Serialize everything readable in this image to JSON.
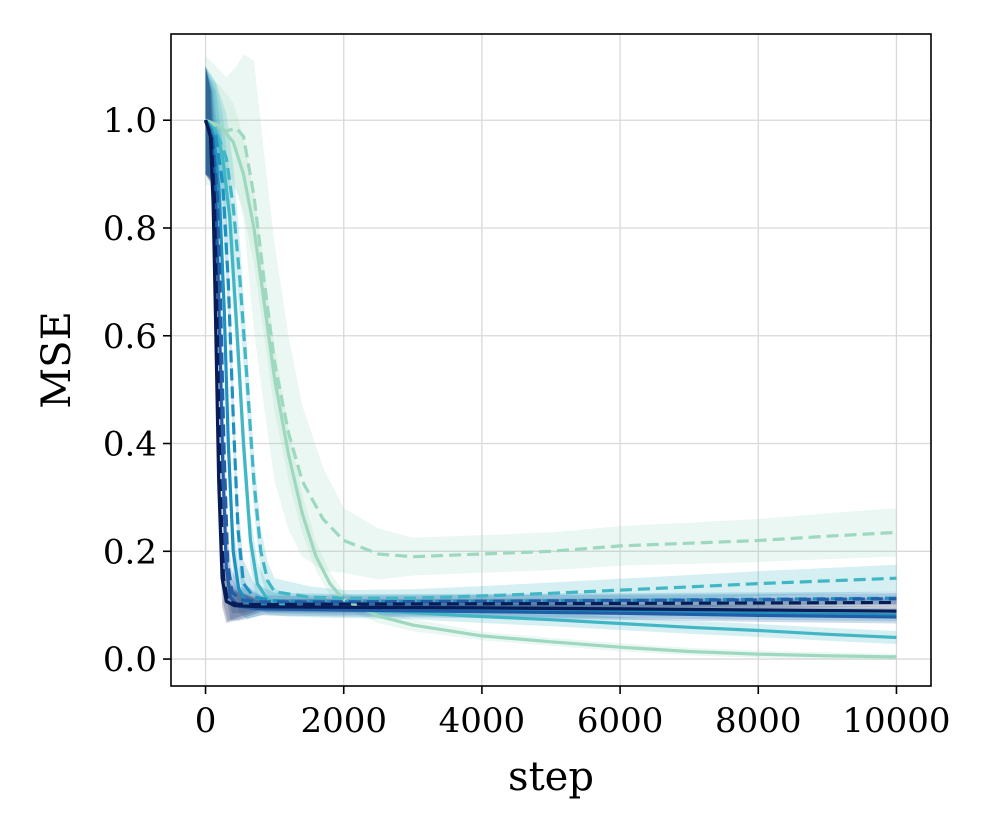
{
  "chart_data": {
    "type": "line",
    "xlabel": "step",
    "ylabel": "MSE",
    "xlim": [
      -500,
      10500
    ],
    "ylim": [
      -0.05,
      1.16
    ],
    "xticks": [
      0,
      2000,
      4000,
      6000,
      8000,
      10000
    ],
    "xtick_labels": [
      "0",
      "2000",
      "4000",
      "6000",
      "8000",
      "10000"
    ],
    "yticks": [
      0.0,
      0.2,
      0.4,
      0.6,
      0.8,
      1.0
    ],
    "ytick_labels": [
      "0.0",
      "0.2",
      "0.4",
      "0.6",
      "0.8",
      "1.0"
    ],
    "grid": true,
    "legend": "none",
    "series": [
      {
        "color": "#9dd8bf",
        "dash": true,
        "band_alpha": 0.2,
        "points": [
          [
            0,
            1.0
          ],
          [
            150,
            0.99
          ],
          [
            300,
            0.98
          ],
          [
            450,
            0.985
          ],
          [
            550,
            0.97
          ],
          [
            700,
            0.86
          ],
          [
            850,
            0.7
          ],
          [
            1000,
            0.55
          ],
          [
            1200,
            0.42
          ],
          [
            1400,
            0.33
          ],
          [
            1700,
            0.26
          ],
          [
            2000,
            0.22
          ],
          [
            2500,
            0.195
          ],
          [
            3000,
            0.19
          ],
          [
            4000,
            0.195
          ],
          [
            5000,
            0.2
          ],
          [
            6000,
            0.21
          ],
          [
            7000,
            0.215
          ],
          [
            8000,
            0.22
          ],
          [
            9000,
            0.228
          ],
          [
            10000,
            0.235
          ]
        ],
        "band": [
          [
            0,
            0.12
          ],
          [
            300,
            0.1
          ],
          [
            500,
            0.12
          ],
          [
            700,
            0.25
          ],
          [
            1000,
            0.22
          ],
          [
            1500,
            0.12
          ],
          [
            2000,
            0.06
          ],
          [
            3000,
            0.035
          ],
          [
            5000,
            0.035
          ],
          [
            8000,
            0.04
          ],
          [
            10000,
            0.045
          ]
        ]
      },
      {
        "color": "#9dd8bf",
        "dash": false,
        "band_alpha": 0.2,
        "points": [
          [
            0,
            1.0
          ],
          [
            200,
            0.99
          ],
          [
            400,
            0.96
          ],
          [
            550,
            0.9
          ],
          [
            700,
            0.8
          ],
          [
            850,
            0.66
          ],
          [
            1000,
            0.52
          ],
          [
            1200,
            0.38
          ],
          [
            1400,
            0.27
          ],
          [
            1600,
            0.19
          ],
          [
            1800,
            0.14
          ],
          [
            2000,
            0.11
          ],
          [
            2500,
            0.08
          ],
          [
            3000,
            0.063
          ],
          [
            4000,
            0.043
          ],
          [
            5000,
            0.032
          ],
          [
            6000,
            0.022
          ],
          [
            7000,
            0.014
          ],
          [
            8000,
            0.009
          ],
          [
            9000,
            0.006
          ],
          [
            10000,
            0.004
          ]
        ],
        "band": [
          [
            0,
            0.08
          ],
          [
            500,
            0.07
          ],
          [
            1000,
            0.06
          ],
          [
            1500,
            0.03
          ],
          [
            2000,
            0.015
          ],
          [
            4000,
            0.008
          ],
          [
            10000,
            0.006
          ]
        ]
      },
      {
        "color": "#41b6c4",
        "dash": true,
        "band_alpha": 0.22,
        "points": [
          [
            0,
            1.0
          ],
          [
            150,
            0.98
          ],
          [
            300,
            0.93
          ],
          [
            400,
            0.84
          ],
          [
            500,
            0.7
          ],
          [
            600,
            0.52
          ],
          [
            700,
            0.33
          ],
          [
            800,
            0.2
          ],
          [
            900,
            0.145
          ],
          [
            1000,
            0.125
          ],
          [
            1500,
            0.115
          ],
          [
            2000,
            0.113
          ],
          [
            3000,
            0.113
          ],
          [
            4000,
            0.117
          ],
          [
            5000,
            0.122
          ],
          [
            6000,
            0.128
          ],
          [
            7000,
            0.134
          ],
          [
            8000,
            0.14
          ],
          [
            9000,
            0.145
          ],
          [
            10000,
            0.15
          ]
        ],
        "band": [
          [
            0,
            0.1
          ],
          [
            500,
            0.07
          ],
          [
            1000,
            0.025
          ],
          [
            2000,
            0.015
          ],
          [
            5000,
            0.02
          ],
          [
            10000,
            0.025
          ]
        ]
      },
      {
        "color": "#41b6c4",
        "dash": false,
        "band_alpha": 0.22,
        "points": [
          [
            0,
            1.0
          ],
          [
            150,
            0.98
          ],
          [
            250,
            0.93
          ],
          [
            350,
            0.82
          ],
          [
            450,
            0.62
          ],
          [
            550,
            0.4
          ],
          [
            650,
            0.22
          ],
          [
            750,
            0.14
          ],
          [
            900,
            0.11
          ],
          [
            1200,
            0.098
          ],
          [
            2000,
            0.092
          ],
          [
            3000,
            0.086
          ],
          [
            4000,
            0.079
          ],
          [
            5000,
            0.073
          ],
          [
            6000,
            0.066
          ],
          [
            7000,
            0.059
          ],
          [
            8000,
            0.053
          ],
          [
            9000,
            0.046
          ],
          [
            10000,
            0.04
          ]
        ],
        "band": [
          [
            0,
            0.1
          ],
          [
            500,
            0.06
          ],
          [
            1000,
            0.02
          ],
          [
            3000,
            0.012
          ],
          [
            10000,
            0.012
          ]
        ]
      },
      {
        "color": "#1d91c0",
        "dash": true,
        "band_alpha": 0.22,
        "points": [
          [
            0,
            1.0
          ],
          [
            150,
            0.97
          ],
          [
            250,
            0.88
          ],
          [
            330,
            0.7
          ],
          [
            400,
            0.45
          ],
          [
            470,
            0.24
          ],
          [
            550,
            0.14
          ],
          [
            700,
            0.115
          ],
          [
            1000,
            0.108
          ],
          [
            2000,
            0.106
          ],
          [
            4000,
            0.107
          ],
          [
            6000,
            0.109
          ],
          [
            8000,
            0.111
          ],
          [
            10000,
            0.113
          ]
        ],
        "band": [
          [
            0,
            0.1
          ],
          [
            400,
            0.06
          ],
          [
            800,
            0.015
          ],
          [
            10000,
            0.012
          ]
        ]
      },
      {
        "color": "#1d91c0",
        "dash": false,
        "band_alpha": 0.22,
        "points": [
          [
            0,
            1.0
          ],
          [
            120,
            0.97
          ],
          [
            200,
            0.86
          ],
          [
            270,
            0.65
          ],
          [
            330,
            0.4
          ],
          [
            400,
            0.2
          ],
          [
            480,
            0.13
          ],
          [
            600,
            0.105
          ],
          [
            900,
            0.097
          ],
          [
            2000,
            0.094
          ],
          [
            4000,
            0.091
          ],
          [
            6000,
            0.088
          ],
          [
            8000,
            0.085
          ],
          [
            10000,
            0.082
          ]
        ],
        "band": [
          [
            0,
            0.1
          ],
          [
            400,
            0.05
          ],
          [
            800,
            0.012
          ],
          [
            10000,
            0.012
          ]
        ]
      },
      {
        "color": "#225ea8",
        "dash": true,
        "band_alpha": 0.22,
        "points": [
          [
            0,
            1.0
          ],
          [
            100,
            0.97
          ],
          [
            170,
            0.86
          ],
          [
            220,
            0.65
          ],
          [
            270,
            0.38
          ],
          [
            320,
            0.18
          ],
          [
            380,
            0.125
          ],
          [
            500,
            0.11
          ],
          [
            800,
            0.106
          ],
          [
            2000,
            0.106
          ],
          [
            5000,
            0.108
          ],
          [
            8000,
            0.11
          ],
          [
            10000,
            0.112
          ]
        ],
        "band": [
          [
            0,
            0.1
          ],
          [
            300,
            0.05
          ],
          [
            600,
            0.012
          ],
          [
            10000,
            0.01
          ]
        ]
      },
      {
        "color": "#225ea8",
        "dash": false,
        "band_alpha": 0.22,
        "points": [
          [
            0,
            1.0
          ],
          [
            90,
            0.97
          ],
          [
            150,
            0.86
          ],
          [
            200,
            0.62
          ],
          [
            250,
            0.36
          ],
          [
            300,
            0.17
          ],
          [
            360,
            0.115
          ],
          [
            480,
            0.098
          ],
          [
            800,
            0.093
          ],
          [
            2000,
            0.091
          ],
          [
            4000,
            0.088
          ],
          [
            6000,
            0.085
          ],
          [
            8000,
            0.081
          ],
          [
            10000,
            0.078
          ]
        ],
        "band": [
          [
            0,
            0.1
          ],
          [
            300,
            0.05
          ],
          [
            600,
            0.012
          ],
          [
            10000,
            0.012
          ]
        ]
      },
      {
        "color": "#081d58",
        "dash": true,
        "band_alpha": 0.22,
        "points": [
          [
            0,
            1.0
          ],
          [
            80,
            0.97
          ],
          [
            130,
            0.85
          ],
          [
            170,
            0.6
          ],
          [
            210,
            0.33
          ],
          [
            260,
            0.15
          ],
          [
            320,
            0.108
          ],
          [
            450,
            0.102
          ],
          [
            800,
            0.101
          ],
          [
            2000,
            0.102
          ],
          [
            5000,
            0.103
          ],
          [
            8000,
            0.104
          ],
          [
            10000,
            0.105
          ]
        ],
        "band": [
          [
            0,
            0.1
          ],
          [
            300,
            0.04
          ],
          [
            600,
            0.01
          ],
          [
            10000,
            0.008
          ]
        ]
      },
      {
        "color": "#081d58",
        "dash": false,
        "band_alpha": 0.22,
        "points": [
          [
            0,
            1.0
          ],
          [
            70,
            0.97
          ],
          [
            110,
            0.85
          ],
          [
            150,
            0.6
          ],
          [
            190,
            0.33
          ],
          [
            240,
            0.15
          ],
          [
            300,
            0.107
          ],
          [
            420,
            0.099
          ],
          [
            800,
            0.097
          ],
          [
            2000,
            0.096
          ],
          [
            4000,
            0.095
          ],
          [
            6000,
            0.093
          ],
          [
            8000,
            0.091
          ],
          [
            10000,
            0.089
          ]
        ],
        "band": [
          [
            0,
            0.1
          ],
          [
            300,
            0.04
          ],
          [
            600,
            0.01
          ],
          [
            10000,
            0.008
          ]
        ]
      }
    ]
  }
}
